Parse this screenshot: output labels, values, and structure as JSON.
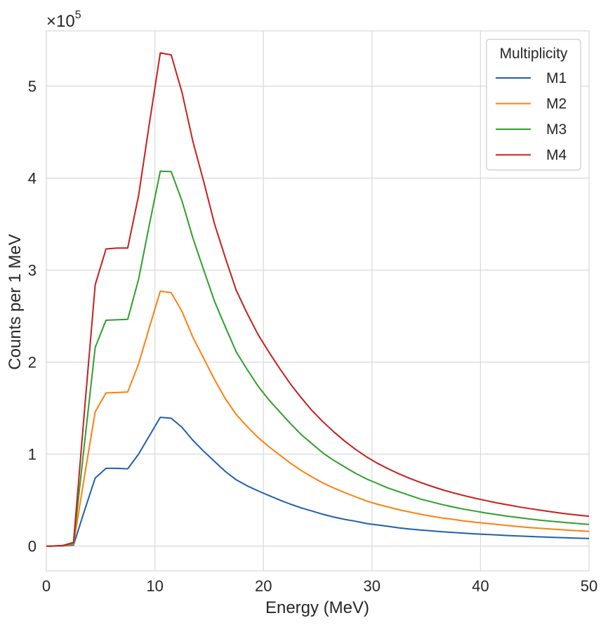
{
  "chart_data": {
    "type": "line",
    "xlabel": "Energy (MeV)",
    "ylabel": "Counts per 1 MeV",
    "offset_text": {
      "base": "×10",
      "exponent": "5"
    },
    "xlim": [
      0,
      50
    ],
    "ylim": [
      -0.27,
      5.6
    ],
    "x_ticks": [
      0,
      10,
      20,
      30,
      40,
      50
    ],
    "x_tick_labels": [
      "0",
      "10",
      "20",
      "30",
      "40",
      "50"
    ],
    "y_ticks": [
      0,
      1,
      2,
      3,
      4,
      5
    ],
    "y_tick_labels": [
      "0",
      "1",
      "2",
      "3",
      "4",
      "5"
    ],
    "y_scale_factor": 100000,
    "grid": true,
    "legend": {
      "title": "Multiplicity",
      "placement": "top-right"
    },
    "x": [
      0,
      0.5,
      1.5,
      2.5,
      3.5,
      4.5,
      5.5,
      6.5,
      7.5,
      8.5,
      9.5,
      10.5,
      11.5,
      12.5,
      13.5,
      14.5,
      15.5,
      16.5,
      17.5,
      18.5,
      19.5,
      20.5,
      21.5,
      22.5,
      23.5,
      24.5,
      25.5,
      26.5,
      27.5,
      28.5,
      29.5,
      30.5,
      31.5,
      32.5,
      33.5,
      34.5,
      35.5,
      36.5,
      37.5,
      38.5,
      39.5,
      40.5,
      41.5,
      42.5,
      43.5,
      44.5,
      45.5,
      46.5,
      47.5,
      48.5,
      49.5,
      50
    ],
    "series": [
      {
        "name": "M1",
        "color": "#1f5fb0",
        "values": [
          0,
          0,
          0.002,
          0.01,
          0.38,
          0.74,
          0.845,
          0.845,
          0.84,
          1.0,
          1.2,
          1.4,
          1.39,
          1.29,
          1.15,
          1.03,
          0.92,
          0.81,
          0.72,
          0.655,
          0.6,
          0.55,
          0.5,
          0.455,
          0.415,
          0.38,
          0.345,
          0.315,
          0.29,
          0.27,
          0.245,
          0.23,
          0.215,
          0.198,
          0.185,
          0.175,
          0.165,
          0.155,
          0.148,
          0.14,
          0.133,
          0.127,
          0.121,
          0.115,
          0.11,
          0.105,
          0.1,
          0.096,
          0.092,
          0.088,
          0.084,
          0.082
        ]
      },
      {
        "name": "M2",
        "color": "#ff7f0e",
        "values": [
          0,
          0,
          0.004,
          0.02,
          0.75,
          1.46,
          1.665,
          1.67,
          1.675,
          1.98,
          2.38,
          2.77,
          2.755,
          2.55,
          2.27,
          2.04,
          1.81,
          1.6,
          1.43,
          1.3,
          1.18,
          1.08,
          0.99,
          0.9,
          0.82,
          0.75,
          0.685,
          0.63,
          0.58,
          0.535,
          0.49,
          0.455,
          0.425,
          0.395,
          0.37,
          0.345,
          0.325,
          0.305,
          0.29,
          0.273,
          0.26,
          0.247,
          0.235,
          0.223,
          0.212,
          0.202,
          0.193,
          0.185,
          0.177,
          0.17,
          0.163,
          0.16
        ]
      },
      {
        "name": "M3",
        "color": "#2ca02c",
        "values": [
          0,
          0,
          0.005,
          0.03,
          1.1,
          2.16,
          2.455,
          2.46,
          2.465,
          2.9,
          3.5,
          4.075,
          4.07,
          3.75,
          3.35,
          3.0,
          2.66,
          2.38,
          2.11,
          1.92,
          1.74,
          1.59,
          1.46,
          1.33,
          1.21,
          1.11,
          1.01,
          0.93,
          0.86,
          0.79,
          0.73,
          0.68,
          0.63,
          0.59,
          0.55,
          0.51,
          0.48,
          0.45,
          0.425,
          0.4,
          0.38,
          0.36,
          0.342,
          0.325,
          0.31,
          0.295,
          0.282,
          0.27,
          0.26,
          0.25,
          0.24,
          0.235
        ]
      },
      {
        "name": "M4",
        "color": "#c81e1e",
        "values": [
          0,
          0,
          0.006,
          0.04,
          1.45,
          2.84,
          3.23,
          3.24,
          3.24,
          3.81,
          4.6,
          5.36,
          5.34,
          4.93,
          4.4,
          3.96,
          3.5,
          3.13,
          2.78,
          2.53,
          2.3,
          2.11,
          1.93,
          1.76,
          1.61,
          1.47,
          1.35,
          1.24,
          1.14,
          1.05,
          0.97,
          0.9,
          0.84,
          0.785,
          0.735,
          0.69,
          0.65,
          0.612,
          0.578,
          0.548,
          0.52,
          0.495,
          0.47,
          0.448,
          0.427,
          0.408,
          0.39,
          0.373,
          0.357,
          0.343,
          0.33,
          0.325
        ]
      }
    ]
  }
}
